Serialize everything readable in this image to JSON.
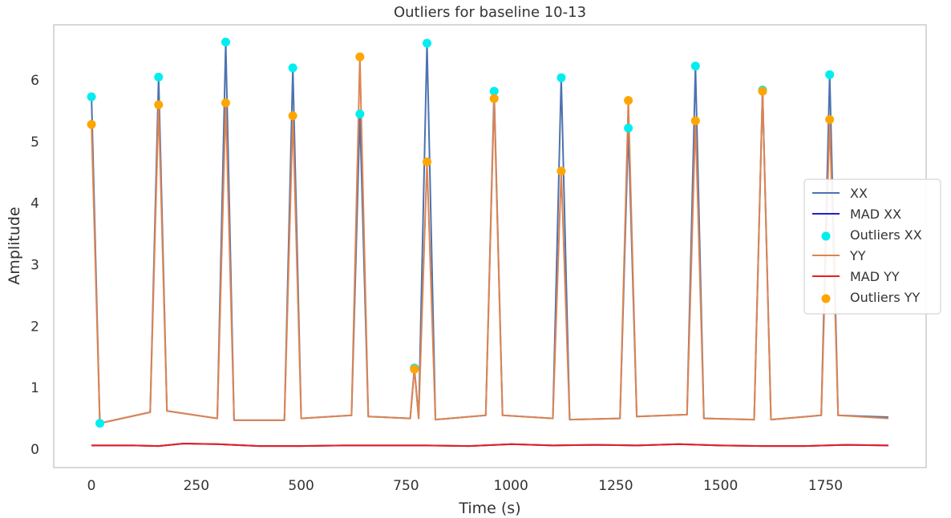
{
  "chart_data": {
    "type": "line",
    "title": "Outliers for baseline 10-13",
    "xlabel": "Time (s)",
    "ylabel": "Amplitude",
    "xlim": [
      -90,
      1990
    ],
    "ylim": [
      -0.3,
      6.9
    ],
    "xticks": [
      0,
      250,
      500,
      750,
      1000,
      1250,
      1500,
      1750
    ],
    "yticks": [
      0,
      1,
      2,
      3,
      4,
      5,
      6
    ],
    "grid": false,
    "legend_position": "center-right",
    "series": [
      {
        "name": "XX",
        "kind": "line",
        "color": "#4c72b0",
        "x": [
          0,
          20,
          40,
          140,
          160,
          180,
          300,
          320,
          340,
          460,
          480,
          500,
          620,
          640,
          660,
          760,
          770,
          780,
          800,
          820,
          940,
          960,
          980,
          1100,
          1120,
          1140,
          1260,
          1280,
          1300,
          1420,
          1440,
          1460,
          1580,
          1600,
          1620,
          1740,
          1760,
          1780,
          1900
        ],
        "y": [
          5.73,
          0.42,
          0.45,
          0.6,
          6.05,
          0.62,
          0.5,
          6.62,
          0.47,
          0.47,
          6.2,
          0.5,
          0.55,
          5.45,
          0.53,
          0.5,
          1.32,
          0.5,
          6.6,
          0.48,
          0.55,
          5.82,
          0.55,
          0.5,
          6.04,
          0.48,
          0.5,
          5.22,
          0.53,
          0.56,
          6.23,
          0.5,
          0.48,
          5.84,
          0.48,
          0.55,
          6.09,
          0.55,
          0.52
        ]
      },
      {
        "name": "MAD XX",
        "kind": "line",
        "color": "#1f1fcc",
        "x": [
          0,
          100,
          160,
          220,
          300,
          400,
          500,
          600,
          700,
          800,
          900,
          1000,
          1100,
          1200,
          1300,
          1400,
          1500,
          1600,
          1700,
          1800,
          1900
        ],
        "y": [
          0.06,
          0.06,
          0.05,
          0.09,
          0.08,
          0.05,
          0.05,
          0.06,
          0.06,
          0.06,
          0.05,
          0.08,
          0.06,
          0.07,
          0.06,
          0.08,
          0.06,
          0.05,
          0.05,
          0.07,
          0.06
        ]
      },
      {
        "name": "Outliers XX",
        "kind": "scatter",
        "color": "#00eeee",
        "x": [
          0,
          20,
          160,
          320,
          480,
          640,
          770,
          800,
          960,
          1120,
          1280,
          1440,
          1600,
          1760
        ],
        "y": [
          5.73,
          0.42,
          6.05,
          6.62,
          6.2,
          5.45,
          1.32,
          6.6,
          5.82,
          6.04,
          5.22,
          6.23,
          5.84,
          6.09
        ]
      },
      {
        "name": "YY",
        "kind": "line",
        "color": "#dd8452",
        "x": [
          0,
          20,
          40,
          140,
          160,
          180,
          300,
          320,
          340,
          460,
          480,
          500,
          620,
          640,
          660,
          760,
          770,
          780,
          800,
          820,
          940,
          960,
          980,
          1100,
          1120,
          1140,
          1260,
          1280,
          1300,
          1420,
          1440,
          1460,
          1580,
          1600,
          1620,
          1740,
          1760,
          1780,
          1900
        ],
        "y": [
          5.28,
          0.42,
          0.45,
          0.6,
          5.6,
          0.62,
          0.5,
          5.63,
          0.47,
          0.47,
          5.42,
          0.5,
          0.55,
          6.38,
          0.53,
          0.5,
          1.3,
          0.5,
          4.67,
          0.48,
          0.55,
          5.7,
          0.55,
          0.5,
          4.52,
          0.48,
          0.5,
          5.67,
          0.53,
          0.56,
          5.34,
          0.5,
          0.48,
          5.82,
          0.48,
          0.55,
          5.36,
          0.55,
          0.5
        ]
      },
      {
        "name": "MAD YY",
        "kind": "line",
        "color": "#e81f1f",
        "x": [
          0,
          100,
          160,
          220,
          300,
          400,
          500,
          600,
          700,
          800,
          900,
          1000,
          1100,
          1200,
          1300,
          1400,
          1500,
          1600,
          1700,
          1800,
          1900
        ],
        "y": [
          0.06,
          0.06,
          0.05,
          0.09,
          0.08,
          0.05,
          0.05,
          0.06,
          0.06,
          0.06,
          0.05,
          0.08,
          0.06,
          0.07,
          0.06,
          0.08,
          0.06,
          0.05,
          0.05,
          0.07,
          0.06
        ]
      },
      {
        "name": "Outliers YY",
        "kind": "scatter",
        "color": "#ffa500",
        "x": [
          0,
          160,
          320,
          480,
          640,
          770,
          800,
          960,
          1120,
          1280,
          1440,
          1600,
          1760
        ],
        "y": [
          5.28,
          5.6,
          5.63,
          5.42,
          6.38,
          1.3,
          4.67,
          5.7,
          4.52,
          5.67,
          5.34,
          5.82,
          5.36
        ]
      }
    ]
  }
}
